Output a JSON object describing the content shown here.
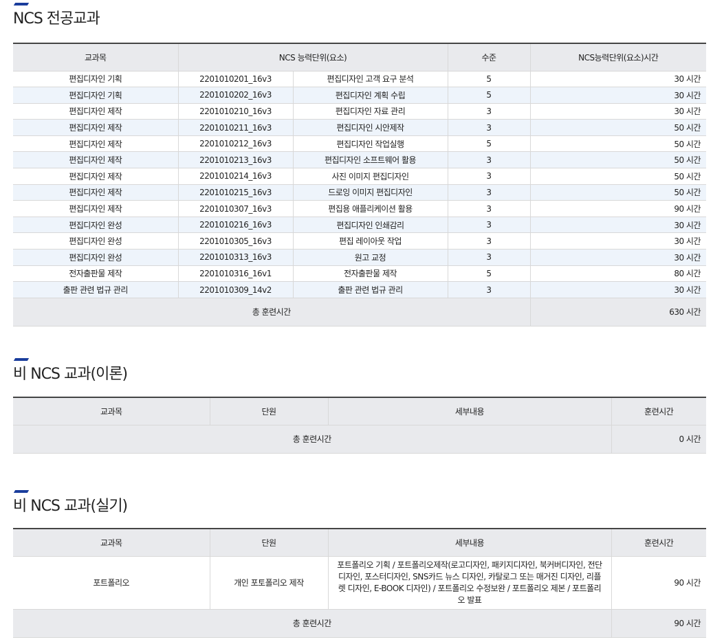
{
  "section1": {
    "title": "NCS 전공교과",
    "headers": [
      "교과목",
      "NCS 능력단위(요소)",
      "수준",
      "NCS능력단위(요소)시간"
    ],
    "rows": [
      [
        "편집디자인 기획",
        "2201010201_16v3",
        "편집디자인 고객 요구 분석",
        "5",
        "30 시간"
      ],
      [
        "편집디자인 기획",
        "2201010202_16v3",
        "편집디자인 계획 수립",
        "5",
        "30 시간"
      ],
      [
        "편집디자인 제작",
        "2201010210_16v3",
        "편집디자인 자료 관리",
        "3",
        "30 시간"
      ],
      [
        "편집디자인 제작",
        "2201010211_16v3",
        "편집디자인 시안제작",
        "3",
        "50 시간"
      ],
      [
        "편집디자인 제작",
        "2201010212_16v3",
        "편집디자인 작업실행",
        "5",
        "50 시간"
      ],
      [
        "편집디자인 제작",
        "2201010213_16v3",
        "편집디자인 소프트웨어 활용",
        "3",
        "50 시간"
      ],
      [
        "편집디자인 제작",
        "2201010214_16v3",
        "사진 이미지 편집디자인",
        "3",
        "50 시간"
      ],
      [
        "편집디자인 제작",
        "2201010215_16v3",
        "드로잉 이미지 편집디자인",
        "3",
        "50 시간"
      ],
      [
        "편집디자인 제작",
        "2201010307_16v3",
        "편집용 애플리케이션 활용",
        "3",
        "90 시간"
      ],
      [
        "편집디자인 완성",
        "2201010216_16v3",
        "편집디자인 인쇄감리",
        "3",
        "30 시간"
      ],
      [
        "편집디자인 완성",
        "2201010305_16v3",
        "편집 레이아웃 작업",
        "3",
        "30 시간"
      ],
      [
        "편집디자인 완성",
        "2201010313_16v3",
        "원고 교정",
        "3",
        "30 시간"
      ],
      [
        "전자출판물 제작",
        "2201010316_16v1",
        "전자출판물 제작",
        "5",
        "80 시간"
      ],
      [
        "출판 관련 법규 관리",
        "2201010309_14v2",
        "출판 관련 법규 관리",
        "3",
        "30 시간"
      ]
    ],
    "total_label": "총 훈련시간",
    "total_value": "630 시간"
  },
  "section2": {
    "title": "비 NCS 교과(이론)",
    "headers": [
      "교과목",
      "단원",
      "세부내용",
      "훈련시간"
    ],
    "total_label": "총 훈련시간",
    "total_value": "0 시간"
  },
  "section3": {
    "title": "비 NCS 교과(실기)",
    "headers": [
      "교과목",
      "단원",
      "세부내용",
      "훈련시간"
    ],
    "rows": [
      [
        "포트폴리오",
        "개인 포토폴리오 제작",
        "포트폴리오 기획 / 포트폴리오제작(로고디자인, 패키지디자인, 북커버디자인, 전단디자인, 포스터디자인, SNS카드 뉴스 디자인, 카탈로그 또는 매거진 디자인, 리플렛 디자인, E-BOOK 디자인) / 포트폴리오 수정보완 / 포트폴리오 제본 / 포트폴리오 발표",
        "90 시간"
      ]
    ],
    "total_label": "총 훈련시간",
    "total_value": "90 시간"
  },
  "colors": {
    "accent": "#1a3d9c",
    "header_bg": "#e9eaed",
    "stripe": "#eef4fb"
  }
}
